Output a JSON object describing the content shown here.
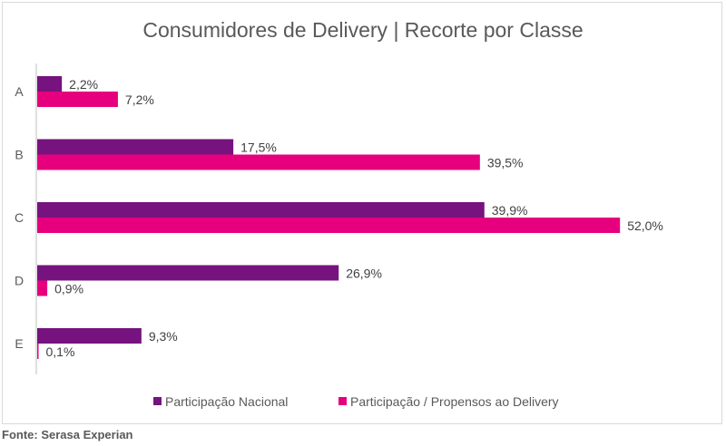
{
  "chart_data": {
    "type": "bar",
    "orientation": "horizontal",
    "title": "Consumidores de Delivery | Recorte por Classe",
    "categories": [
      "A",
      "B",
      "C",
      "D",
      "E"
    ],
    "series": [
      {
        "name": "Participação Nacional",
        "color": "#76137f",
        "values": [
          2.2,
          17.5,
          39.9,
          26.9,
          9.3
        ],
        "labels": [
          "2,2%",
          "17,5%",
          "39,9%",
          "26,9%",
          "9,3%"
        ]
      },
      {
        "name": "Participação / Propensos ao Delivery",
        "color": "#e6007e",
        "values": [
          7.2,
          39.5,
          52.0,
          0.9,
          0.1
        ],
        "labels": [
          "7,2%",
          "39,5%",
          "52,0%",
          "0,9%",
          "0,1%"
        ]
      }
    ],
    "xlim": [
      0,
      64
    ],
    "grid": false,
    "legend": "bottom",
    "xlabel": "",
    "ylabel": ""
  },
  "source": "Fonte: Serasa Experian"
}
